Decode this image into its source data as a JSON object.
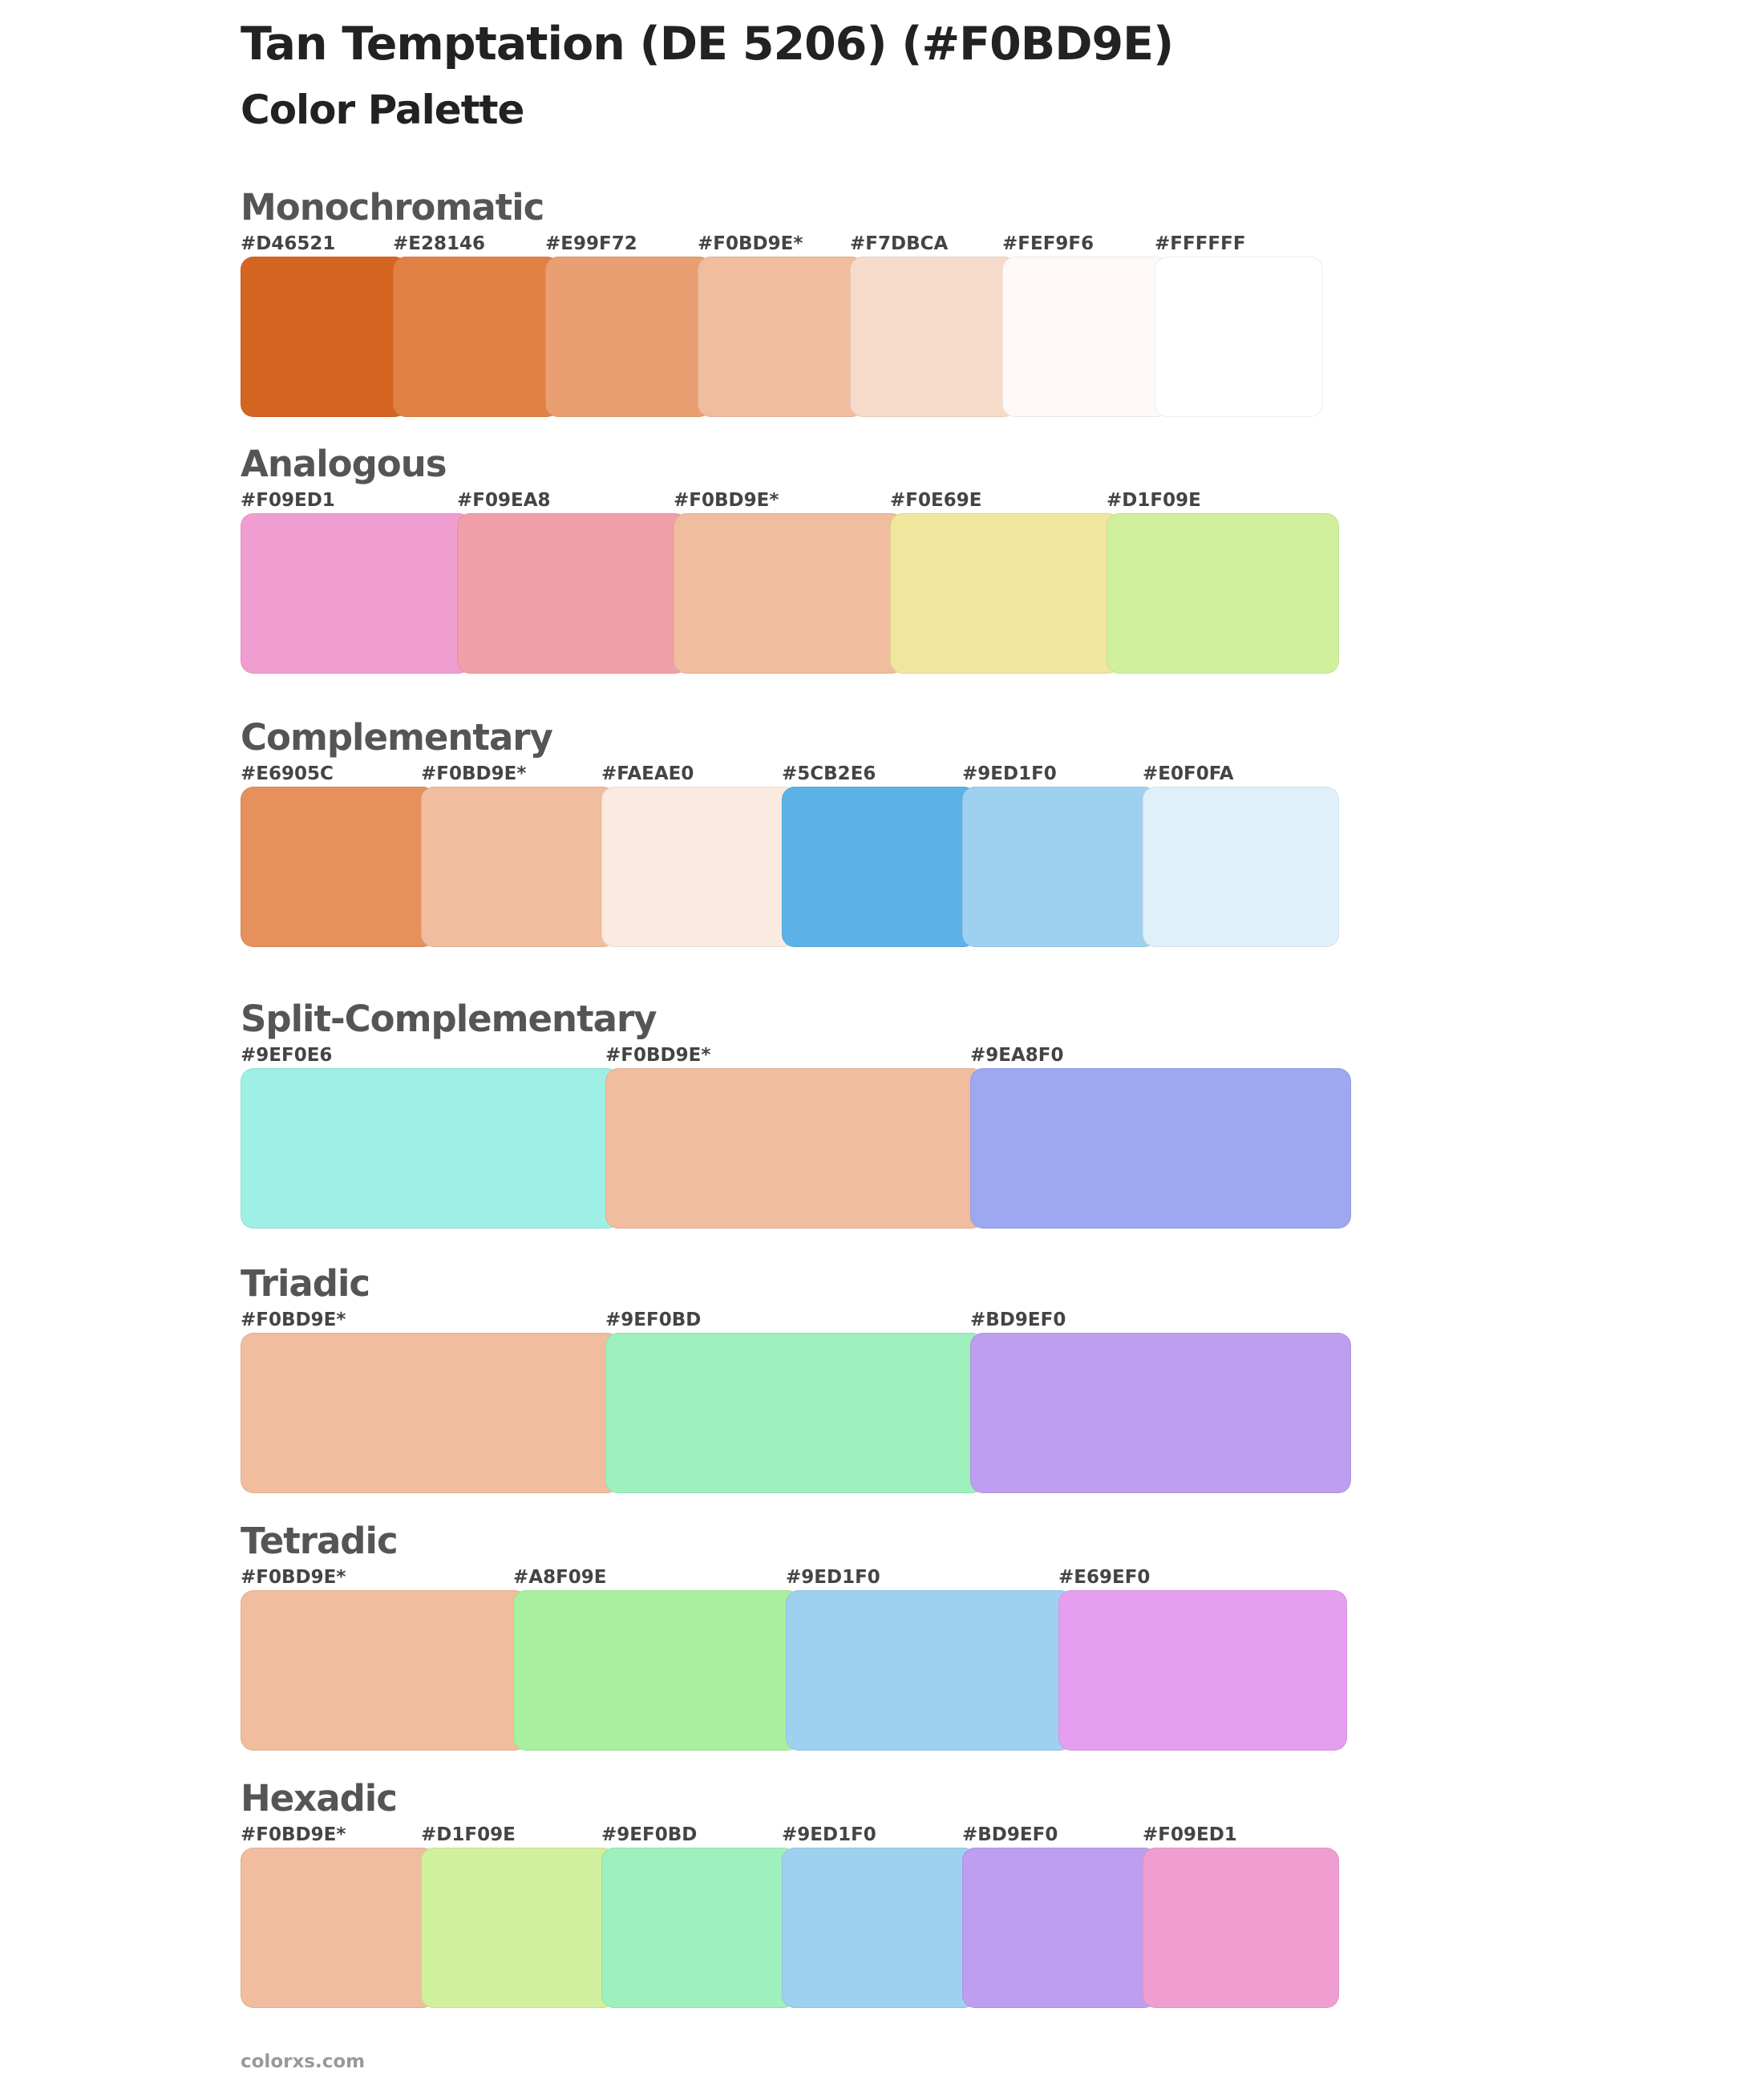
{
  "page": {
    "title": "Tan Temptation (DE 5206) (#F0BD9E)",
    "subtitle": "Color Palette",
    "footer": "colorxs.com"
  },
  "sections": [
    {
      "title": "Monochromatic",
      "swatches": [
        {
          "label": "#D46521",
          "color": "#D46521"
        },
        {
          "label": "#E28146",
          "color": "#E28146"
        },
        {
          "label": "#E99F72",
          "color": "#E99F72"
        },
        {
          "label": "#F0BD9E*",
          "color": "#F0BD9E"
        },
        {
          "label": "#F7DBCA",
          "color": "#F7DBCA"
        },
        {
          "label": "#FEF9F6",
          "color": "#FEF9F6"
        },
        {
          "label": "#FFFFFF",
          "color": "#FFFFFF"
        }
      ]
    },
    {
      "title": "Analogous",
      "swatches": [
        {
          "label": "#F09ED1",
          "color": "#F09ED1"
        },
        {
          "label": "#F09EA8",
          "color": "#F09EA8"
        },
        {
          "label": "#F0BD9E*",
          "color": "#F0BD9E"
        },
        {
          "label": "#F0E69E",
          "color": "#F0E69E"
        },
        {
          "label": "#D1F09E",
          "color": "#D1F09E"
        }
      ]
    },
    {
      "title": "Complementary",
      "swatches": [
        {
          "label": "#E6905C",
          "color": "#E6905C"
        },
        {
          "label": "#F0BD9E*",
          "color": "#F0BD9E"
        },
        {
          "label": "#FAEAE0",
          "color": "#FAEAE0"
        },
        {
          "label": "#5CB2E6",
          "color": "#5CB2E6"
        },
        {
          "label": "#9ED1F0",
          "color": "#9ED1F0"
        },
        {
          "label": "#E0F0FA",
          "color": "#E0F0FA"
        }
      ]
    },
    {
      "title": "Split-Complementary",
      "swatches": [
        {
          "label": "#9EF0E6",
          "color": "#9EF0E6"
        },
        {
          "label": "#F0BD9E*",
          "color": "#F0BD9E"
        },
        {
          "label": "#9EA8F0",
          "color": "#9EA8F0"
        }
      ]
    },
    {
      "title": "Triadic",
      "swatches": [
        {
          "label": "#F0BD9E*",
          "color": "#F0BD9E"
        },
        {
          "label": "#9EF0BD",
          "color": "#9EF0BD"
        },
        {
          "label": "#BD9EF0",
          "color": "#BD9EF0"
        }
      ]
    },
    {
      "title": "Tetradic",
      "swatches": [
        {
          "label": "#F0BD9E*",
          "color": "#F0BD9E"
        },
        {
          "label": "#A8F09E",
          "color": "#A8F09E"
        },
        {
          "label": "#9ED1F0",
          "color": "#9ED1F0"
        },
        {
          "label": "#E69EF0",
          "color": "#E69EF0"
        }
      ]
    },
    {
      "title": "Hexadic",
      "swatches": [
        {
          "label": "#F0BD9E*",
          "color": "#F0BD9E"
        },
        {
          "label": "#D1F09E",
          "color": "#D1F09E"
        },
        {
          "label": "#9EF0BD",
          "color": "#9EF0BD"
        },
        {
          "label": "#9ED1F0",
          "color": "#9ED1F0"
        },
        {
          "label": "#BD9EF0",
          "color": "#BD9EF0"
        },
        {
          "label": "#F09ED1",
          "color": "#F09ED1"
        }
      ]
    }
  ]
}
